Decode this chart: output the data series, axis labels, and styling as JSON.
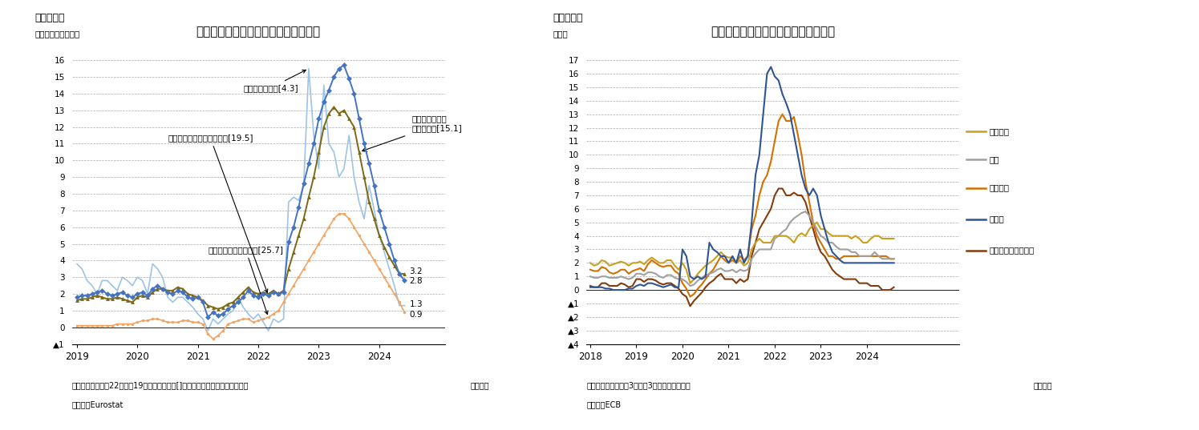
{
  "chart3": {
    "title": "ユーロ圈の飲食料価格の上昇率と内訳",
    "subtitle": "（図表３）",
    "ylabel": "（前年同月比、％）",
    "note": "（注）ユーロ圈は22年まで19か国のデータ、[]内は総合指数に対するウェイト",
    "source": "（資料）Eurostat",
    "month_label": "（月次）",
    "ylim": [
      -1,
      16
    ],
    "yticks": [
      -1,
      0,
      1,
      2,
      3,
      4,
      5,
      6,
      7,
      8,
      9,
      10,
      11,
      12,
      13,
      14,
      15,
      16
    ],
    "ytick_labels": [
      "▲1",
      "0",
      "1",
      "2",
      "3",
      "4",
      "5",
      "6",
      "7",
      "8",
      "9",
      "10",
      "11",
      "12",
      "13",
      "14",
      "15",
      "16"
    ],
    "ann_food": "飲食料（アルコール含む）[19.5]",
    "ann_unproc": "うち未加工食品[4.3]",
    "ann_proc": "うち加工食品・\nアルコール[15.1]",
    "ann_goods": "財（エネルギー除く）[25.7]",
    "series": {
      "food_incl_alc": {
        "label": "飲食料（アルコール含む）[19.5]",
        "color": "#4472C4",
        "marker": "D",
        "markersize": 3.5,
        "linewidth": 1.4,
        "values": [
          1.8,
          1.9,
          1.9,
          2.0,
          2.1,
          2.2,
          2.0,
          1.9,
          2.0,
          2.1,
          1.9,
          1.8,
          2.0,
          2.1,
          1.9,
          2.3,
          2.5,
          2.3,
          2.1,
          2.0,
          2.2,
          2.1,
          1.8,
          1.7,
          1.8,
          1.5,
          0.6,
          0.9,
          0.7,
          0.8,
          1.1,
          1.3,
          1.5,
          1.8,
          2.2,
          1.9,
          1.8,
          2.0,
          1.9,
          2.1,
          2.0,
          2.1,
          5.1,
          6.0,
          7.2,
          8.6,
          9.8,
          11.0,
          12.5,
          13.5,
          14.2,
          15.0,
          15.5,
          15.7,
          14.9,
          14.0,
          12.5,
          11.0,
          9.8,
          8.5,
          7.0,
          6.0,
          5.0,
          4.0,
          3.2,
          2.8
        ]
      },
      "processed_food": {
        "label": "うち加工食品・アルコール[15.1]",
        "color": "#7B6914",
        "marker": "^",
        "markersize": 3.5,
        "linewidth": 1.4,
        "values": [
          1.6,
          1.7,
          1.7,
          1.8,
          1.9,
          1.8,
          1.7,
          1.7,
          1.8,
          1.7,
          1.6,
          1.5,
          1.8,
          1.9,
          1.8,
          2.1,
          2.3,
          2.3,
          2.2,
          2.2,
          2.4,
          2.3,
          2.0,
          1.9,
          1.8,
          1.6,
          1.3,
          1.2,
          1.1,
          1.2,
          1.4,
          1.5,
          1.8,
          2.1,
          2.4,
          2.1,
          2.0,
          2.1,
          2.0,
          2.2,
          2.0,
          2.2,
          3.5,
          4.5,
          5.5,
          6.5,
          7.8,
          9.0,
          10.5,
          12.0,
          12.8,
          13.2,
          12.8,
          13.0,
          12.5,
          12.0,
          10.5,
          9.0,
          7.5,
          6.5,
          5.5,
          4.8,
          4.2,
          3.7,
          3.2,
          3.2
        ]
      },
      "unprocessed_food": {
        "label": "うち未加工食品[4.3]",
        "color": "#9DC3E6",
        "marker": null,
        "markersize": 0,
        "linewidth": 1.2,
        "values": [
          3.8,
          3.5,
          2.8,
          2.5,
          2.0,
          2.8,
          2.8,
          2.5,
          2.2,
          3.0,
          2.8,
          2.5,
          3.0,
          2.8,
          2.0,
          3.8,
          3.5,
          3.0,
          1.8,
          1.5,
          1.8,
          1.8,
          1.5,
          1.2,
          0.8,
          0.5,
          -0.2,
          0.5,
          0.2,
          0.5,
          0.8,
          1.0,
          1.8,
          1.2,
          0.8,
          0.5,
          0.8,
          0.3,
          -0.2,
          0.5,
          0.3,
          0.5,
          7.5,
          7.8,
          7.6,
          8.5,
          15.5,
          11.5,
          9.5,
          14.5,
          11.0,
          10.5,
          9.0,
          9.5,
          11.5,
          9.0,
          7.5,
          6.5,
          8.5,
          7.0,
          5.5,
          4.5,
          3.5,
          2.5,
          1.3,
          1.3
        ]
      },
      "goods_ex_energy": {
        "label": "財（エネルギー除く）[25.7]",
        "color": "#F4A460",
        "marker": "o",
        "markersize": 2.5,
        "linewidth": 1.2,
        "values": [
          0.1,
          0.1,
          0.1,
          0.1,
          0.1,
          0.1,
          0.1,
          0.1,
          0.2,
          0.2,
          0.2,
          0.2,
          0.3,
          0.4,
          0.4,
          0.5,
          0.5,
          0.4,
          0.3,
          0.3,
          0.3,
          0.4,
          0.4,
          0.3,
          0.3,
          0.2,
          -0.4,
          -0.7,
          -0.5,
          -0.2,
          0.2,
          0.3,
          0.4,
          0.5,
          0.5,
          0.3,
          0.4,
          0.5,
          0.6,
          0.8,
          1.0,
          1.5,
          2.0,
          2.5,
          3.0,
          3.5,
          4.0,
          4.5,
          5.0,
          5.5,
          6.0,
          6.5,
          6.8,
          6.8,
          6.5,
          6.0,
          5.5,
          5.0,
          4.5,
          4.0,
          3.5,
          3.0,
          2.5,
          2.0,
          1.5,
          0.9
        ]
      }
    },
    "end_labels": {
      "food_incl_alc": "2.8",
      "processed_food": "3.2",
      "unprocessed_food": "1.3",
      "goods_ex_energy": "0.9"
    },
    "x_start_year": 2019,
    "n_months": 66
  },
  "chart4": {
    "title": "ユーロ圈のインフレ率（季節調整値）",
    "subtitle": "（図表４）",
    "ylabel": "（％）",
    "note": "（注）季節調整値の3か月平3か月前比年率換算",
    "source": "（資料）ECB",
    "month_label": "（月次）",
    "ylim": [
      -4,
      17
    ],
    "yticks": [
      -4,
      -3,
      -2,
      -1,
      0,
      1,
      2,
      3,
      4,
      5,
      6,
      7,
      8,
      9,
      10,
      11,
      12,
      13,
      14,
      15,
      16,
      17
    ],
    "ytick_labels": [
      "▲4",
      "▲3",
      "▲2",
      "▲1",
      "0",
      "1",
      "2",
      "3",
      "4",
      "5",
      "6",
      "7",
      "8",
      "9",
      "10",
      "11",
      "12",
      "13",
      "14",
      "15",
      "16",
      "17"
    ],
    "series": {
      "services": {
        "label": "サービス",
        "color": "#C8A020",
        "linewidth": 1.5,
        "values": [
          2.0,
          1.8,
          1.9,
          2.2,
          2.1,
          1.8,
          1.9,
          2.0,
          2.1,
          2.0,
          1.8,
          2.0,
          2.0,
          2.1,
          1.9,
          2.2,
          2.4,
          2.2,
          2.0,
          2.0,
          2.2,
          2.2,
          1.8,
          1.5,
          2.0,
          1.5,
          0.5,
          0.8,
          1.2,
          1.5,
          1.8,
          2.0,
          2.2,
          2.5,
          2.8,
          2.5,
          2.4,
          2.4,
          2.0,
          2.2,
          1.8,
          2.0,
          3.0,
          3.5,
          3.8,
          3.5,
          3.5,
          3.5,
          4.0,
          4.0,
          4.0,
          4.0,
          3.8,
          3.5,
          4.0,
          4.2,
          4.0,
          4.5,
          4.8,
          5.0,
          4.5,
          4.5,
          4.2,
          4.0,
          4.0,
          4.0,
          4.0,
          4.0,
          3.8,
          4.0,
          3.8,
          3.5,
          3.5,
          3.8,
          4.0,
          4.0,
          3.8,
          3.8,
          3.8,
          3.8
        ]
      },
      "core": {
        "label": "コア",
        "color": "#A0A0A0",
        "linewidth": 1.5,
        "values": [
          1.0,
          0.9,
          0.9,
          1.0,
          1.0,
          0.9,
          0.9,
          0.9,
          1.0,
          0.9,
          0.8,
          0.9,
          1.2,
          1.2,
          1.1,
          1.3,
          1.3,
          1.2,
          1.0,
          0.9,
          1.1,
          1.1,
          0.9,
          0.8,
          0.8,
          0.6,
          0.3,
          0.4,
          0.7,
          0.9,
          1.1,
          1.2,
          1.3,
          1.5,
          1.6,
          1.4,
          1.4,
          1.5,
          1.3,
          1.5,
          1.4,
          1.5,
          2.3,
          2.7,
          3.0,
          3.0,
          3.0,
          3.0,
          3.8,
          4.0,
          4.3,
          4.5,
          5.0,
          5.3,
          5.5,
          5.7,
          5.8,
          5.5,
          5.0,
          4.5,
          4.0,
          3.8,
          3.5,
          3.5,
          3.2,
          3.0,
          3.0,
          3.0,
          2.8,
          2.8,
          2.5,
          2.5,
          2.5,
          2.5,
          2.8,
          2.5,
          2.3,
          2.3,
          2.3,
          2.3
        ]
      },
      "total": {
        "label": "総合指数",
        "color": "#D47000",
        "linewidth": 1.5,
        "values": [
          1.5,
          1.4,
          1.4,
          1.7,
          1.6,
          1.3,
          1.2,
          1.3,
          1.5,
          1.5,
          1.2,
          1.4,
          1.5,
          1.6,
          1.4,
          1.9,
          2.2,
          2.0,
          1.8,
          1.7,
          1.8,
          1.8,
          1.4,
          1.2,
          0.5,
          0.1,
          -0.5,
          -0.3,
          0.1,
          0.4,
          0.8,
          1.2,
          1.5,
          2.0,
          2.5,
          2.2,
          2.0,
          2.2,
          2.0,
          2.5,
          2.2,
          2.5,
          4.5,
          5.5,
          7.0,
          8.0,
          8.5,
          9.5,
          11.0,
          12.5,
          13.0,
          12.5,
          12.5,
          12.8,
          11.5,
          10.0,
          8.0,
          6.5,
          5.0,
          4.0,
          3.5,
          3.0,
          2.5,
          2.5,
          2.3,
          2.3,
          2.5,
          2.5,
          2.5,
          2.5,
          2.5,
          2.5,
          2.5,
          2.5,
          2.5,
          2.5,
          2.5,
          2.5,
          2.3,
          2.3
        ]
      },
      "food": {
        "label": "飲食料",
        "color": "#2F5496",
        "linewidth": 1.5,
        "values": [
          0.2,
          0.2,
          0.2,
          0.2,
          0.1,
          0.1,
          0.0,
          0.0,
          0.0,
          0.0,
          0.1,
          0.1,
          0.3,
          0.4,
          0.3,
          0.5,
          0.5,
          0.4,
          0.3,
          0.2,
          0.3,
          0.4,
          0.2,
          0.2,
          3.0,
          2.5,
          1.0,
          0.8,
          1.0,
          0.8,
          1.0,
          3.5,
          3.0,
          2.8,
          2.5,
          2.5,
          2.0,
          2.5,
          2.0,
          3.0,
          2.0,
          2.5,
          5.0,
          8.5,
          10.0,
          13.0,
          16.0,
          16.5,
          15.8,
          15.5,
          14.5,
          13.8,
          13.0,
          11.5,
          10.0,
          8.5,
          7.5,
          7.0,
          7.5,
          7.0,
          5.5,
          4.5,
          3.5,
          2.8,
          2.5,
          2.2,
          2.0,
          2.0,
          2.0,
          2.0,
          2.0,
          2.0,
          2.0,
          2.0,
          2.0,
          2.0,
          2.0,
          2.0,
          2.0,
          2.0
        ]
      },
      "goods_ex_energy": {
        "label": "エネルギーを除く財",
        "color": "#843C0C",
        "linewidth": 1.5,
        "values": [
          0.3,
          0.2,
          0.2,
          0.5,
          0.5,
          0.3,
          0.3,
          0.3,
          0.5,
          0.4,
          0.2,
          0.3,
          0.8,
          0.8,
          0.6,
          0.8,
          0.8,
          0.7,
          0.5,
          0.4,
          0.5,
          0.5,
          0.3,
          0.1,
          -0.3,
          -0.5,
          -1.2,
          -0.8,
          -0.5,
          -0.2,
          0.2,
          0.5,
          0.7,
          1.0,
          1.2,
          0.8,
          0.8,
          0.8,
          0.5,
          0.8,
          0.6,
          0.8,
          2.5,
          3.5,
          4.5,
          5.0,
          5.5,
          6.0,
          7.0,
          7.5,
          7.5,
          7.0,
          7.0,
          7.2,
          7.0,
          7.0,
          6.5,
          5.5,
          4.5,
          3.5,
          2.8,
          2.5,
          2.0,
          1.5,
          1.2,
          1.0,
          0.8,
          0.8,
          0.8,
          0.8,
          0.5,
          0.5,
          0.5,
          0.3,
          0.3,
          0.3,
          0.0,
          0.0,
          0.0,
          0.2
        ]
      }
    },
    "x_start_year": 2018,
    "n_months": 80,
    "legend_labels": [
      "サービス",
      "コア",
      "総合指数",
      "飲食料",
      "エネルギーを除く財"
    ],
    "legend_colors": [
      "#C8A020",
      "#A0A0A0",
      "#D47000",
      "#2F5496",
      "#843C0C"
    ]
  }
}
